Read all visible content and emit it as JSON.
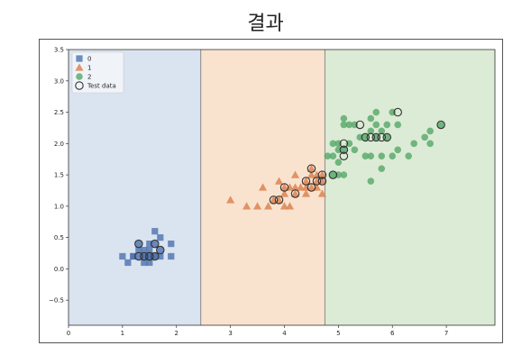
{
  "title": "결과",
  "chart_data": {
    "type": "scatter",
    "xlim": [
      0,
      7.9
    ],
    "ylim": [
      -0.9,
      3.5
    ],
    "xticks": [
      "0",
      "1",
      "2",
      "3",
      "4",
      "5",
      "6",
      "7"
    ],
    "yticks": [
      "−0.5",
      "0.0",
      "0.5",
      "1.0",
      "1.5",
      "2.0",
      "2.5",
      "3.0",
      "3.5"
    ],
    "regions": [
      {
        "class": "0",
        "x_from": 0,
        "x_to": 2.45,
        "color": "#dae3f0"
      },
      {
        "class": "1",
        "x_from": 2.45,
        "x_to": 4.75,
        "color": "#f9e3cf"
      },
      {
        "class": "2",
        "x_from": 4.75,
        "x_to": 7.9,
        "color": "#dcebd5"
      }
    ],
    "legend": {
      "position": "upper-left",
      "entries": [
        {
          "label": "0",
          "marker": "square",
          "color": "#4c72b0"
        },
        {
          "label": "1",
          "marker": "triangle",
          "color": "#dd8452"
        },
        {
          "label": "2",
          "marker": "circle",
          "color": "#55a868"
        },
        {
          "label": "Test data",
          "marker": "open-circle",
          "color": "#333333"
        }
      ]
    },
    "series": [
      {
        "name": "0",
        "marker": "square",
        "color": "#4c72b0",
        "points": [
          [
            1.0,
            0.2
          ],
          [
            1.1,
            0.1
          ],
          [
            1.2,
            0.2
          ],
          [
            1.3,
            0.2
          ],
          [
            1.3,
            0.3
          ],
          [
            1.4,
            0.2
          ],
          [
            1.4,
            0.3
          ],
          [
            1.4,
            0.1
          ],
          [
            1.5,
            0.2
          ],
          [
            1.5,
            0.1
          ],
          [
            1.5,
            0.4
          ],
          [
            1.5,
            0.3
          ],
          [
            1.6,
            0.2
          ],
          [
            1.6,
            0.4
          ],
          [
            1.6,
            0.6
          ],
          [
            1.7,
            0.2
          ],
          [
            1.7,
            0.3
          ],
          [
            1.7,
            0.5
          ],
          [
            1.9,
            0.2
          ],
          [
            1.9,
            0.4
          ],
          [
            1.3,
            0.4
          ],
          [
            1.5,
            0.2
          ],
          [
            1.4,
            0.2
          ],
          [
            1.6,
            0.2
          ],
          [
            1.2,
            0.2
          ]
        ]
      },
      {
        "name": "1",
        "marker": "triangle",
        "color": "#dd8452",
        "points": [
          [
            3.0,
            1.1
          ],
          [
            3.3,
            1.0
          ],
          [
            3.5,
            1.0
          ],
          [
            3.6,
            1.3
          ],
          [
            3.7,
            1.0
          ],
          [
            3.8,
            1.1
          ],
          [
            3.9,
            1.4
          ],
          [
            3.9,
            1.1
          ],
          [
            4.0,
            1.0
          ],
          [
            4.0,
            1.3
          ],
          [
            4.0,
            1.2
          ],
          [
            4.1,
            1.0
          ],
          [
            4.1,
            1.3
          ],
          [
            4.2,
            1.3
          ],
          [
            4.2,
            1.5
          ],
          [
            4.2,
            1.2
          ],
          [
            4.3,
            1.3
          ],
          [
            4.4,
            1.4
          ],
          [
            4.4,
            1.2
          ],
          [
            4.4,
            1.3
          ],
          [
            4.5,
            1.5
          ],
          [
            4.5,
            1.3
          ],
          [
            4.5,
            1.6
          ],
          [
            4.6,
            1.5
          ],
          [
            4.6,
            1.4
          ],
          [
            4.7,
            1.4
          ],
          [
            4.7,
            1.5
          ],
          [
            4.7,
            1.2
          ],
          [
            4.6,
            1.3
          ]
        ]
      },
      {
        "name": "2",
        "marker": "circle",
        "color": "#55a868",
        "points": [
          [
            4.8,
            1.8
          ],
          [
            4.9,
            1.8
          ],
          [
            4.9,
            1.5
          ],
          [
            5.0,
            1.5
          ],
          [
            5.0,
            2.0
          ],
          [
            5.0,
            1.9
          ],
          [
            5.1,
            2.3
          ],
          [
            5.1,
            2.4
          ],
          [
            5.1,
            1.9
          ],
          [
            5.1,
            1.5
          ],
          [
            5.2,
            2.0
          ],
          [
            5.3,
            2.3
          ],
          [
            5.3,
            1.9
          ],
          [
            5.4,
            2.1
          ],
          [
            5.5,
            1.8
          ],
          [
            5.5,
            2.1
          ],
          [
            5.6,
            2.4
          ],
          [
            5.6,
            1.4
          ],
          [
            5.6,
            1.8
          ],
          [
            5.6,
            2.2
          ],
          [
            5.7,
            2.5
          ],
          [
            5.7,
            2.3
          ],
          [
            5.7,
            2.1
          ],
          [
            5.8,
            2.2
          ],
          [
            5.8,
            1.8
          ],
          [
            5.8,
            1.6
          ],
          [
            5.9,
            2.3
          ],
          [
            5.9,
            2.1
          ],
          [
            6.0,
            1.8
          ],
          [
            6.0,
            2.5
          ],
          [
            6.1,
            1.9
          ],
          [
            6.1,
            2.3
          ],
          [
            6.3,
            1.8
          ],
          [
            6.4,
            2.0
          ],
          [
            6.6,
            2.1
          ],
          [
            6.7,
            2.0
          ],
          [
            6.7,
            2.2
          ],
          [
            6.9,
            2.3
          ],
          [
            5.2,
            2.3
          ],
          [
            4.9,
            2.0
          ],
          [
            5.0,
            1.7
          ]
        ]
      },
      {
        "name": "Test data",
        "marker": "open-circle",
        "color": "#333333",
        "points": [
          [
            1.3,
            0.4
          ],
          [
            1.3,
            0.2
          ],
          [
            1.5,
            0.2
          ],
          [
            1.6,
            0.2
          ],
          [
            1.6,
            0.4
          ],
          [
            1.7,
            0.3
          ],
          [
            1.4,
            0.2
          ],
          [
            1.5,
            0.2
          ],
          [
            3.8,
            1.1
          ],
          [
            3.9,
            1.1
          ],
          [
            4.0,
            1.3
          ],
          [
            4.2,
            1.2
          ],
          [
            4.4,
            1.4
          ],
          [
            4.5,
            1.3
          ],
          [
            4.5,
            1.6
          ],
          [
            4.6,
            1.4
          ],
          [
            4.7,
            1.4
          ],
          [
            4.7,
            1.5
          ],
          [
            4.9,
            1.5
          ],
          [
            5.1,
            1.8
          ],
          [
            5.1,
            1.9
          ],
          [
            5.1,
            2.0
          ],
          [
            5.4,
            2.3
          ],
          [
            5.5,
            2.1
          ],
          [
            5.6,
            2.1
          ],
          [
            5.7,
            2.1
          ],
          [
            5.8,
            2.1
          ],
          [
            5.9,
            2.1
          ],
          [
            6.1,
            2.5
          ],
          [
            6.9,
            2.3
          ]
        ]
      }
    ]
  }
}
